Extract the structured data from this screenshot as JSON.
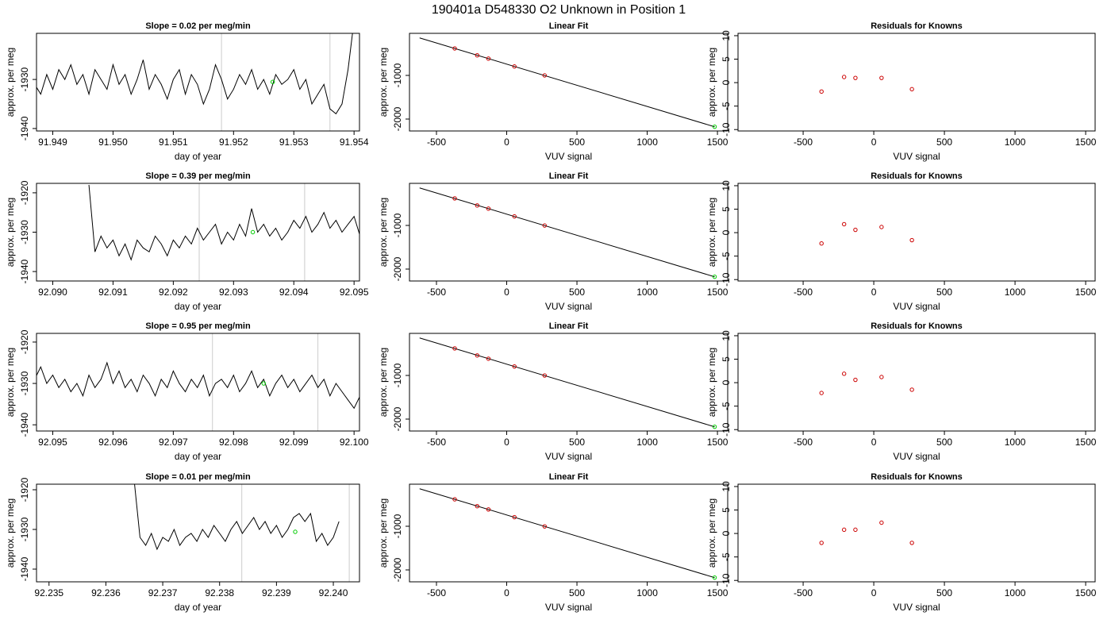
{
  "title": "190401a      D548330    O2 Unknown in Position  1",
  "chart_data": [
    {
      "type": "line",
      "title": "Slope =  0.02  per meg/min",
      "xlabel": "day of year",
      "ylabel": "approx. per meg",
      "x": [
        91.9487,
        91.9488,
        91.9489,
        91.949,
        91.9491,
        91.9492,
        91.9493,
        91.9494,
        91.9495,
        91.9496,
        91.9497,
        91.9498,
        91.9499,
        91.95,
        91.9501,
        91.9502,
        91.9503,
        91.9504,
        91.9505,
        91.9506,
        91.9507,
        91.9508,
        91.9509,
        91.951,
        91.9511,
        91.9512,
        91.9513,
        91.9514,
        91.9515,
        91.9516,
        91.9517,
        91.9518,
        91.9519,
        91.952,
        91.9521,
        91.9522,
        91.9523,
        91.9524,
        91.9525,
        91.9526,
        91.9527,
        91.9528,
        91.9529,
        91.953,
        91.9531,
        91.9532,
        91.9533,
        91.9534,
        91.9535,
        91.9536,
        91.9537,
        91.9538,
        91.9539,
        91.954
      ],
      "series": [
        {
          "color": "#000000",
          "values": [
            -1931,
            -1933,
            -1929,
            -1932,
            -1928,
            -1930,
            -1927,
            -1931,
            -1929,
            -1933,
            -1928,
            -1930,
            -1932,
            -1927,
            -1931,
            -1929,
            -1933,
            -1930,
            -1926,
            -1932,
            -1929,
            -1931,
            -1934,
            -1930,
            -1928,
            -1933,
            -1929,
            -1931,
            -1935,
            -1932,
            -1927,
            -1930,
            -1934,
            -1932,
            -1929,
            -1931,
            -1928,
            -1932,
            -1930,
            -1933,
            -1929,
            -1931,
            -1930,
            -1928,
            -1932,
            -1930,
            -1935,
            -1933,
            -1931,
            -1936,
            -1937,
            -1935,
            -1928,
            -1918
          ]
        }
      ],
      "vlines": [
        91.9518,
        91.9536
      ],
      "vline_color": "#cccccc",
      "point": {
        "x": 91.95265,
        "y": -1930.5,
        "color": "#00cc00"
      },
      "xlim": [
        91.94873,
        91.95409
      ],
      "ylim": [
        -1940.5,
        -1920.6
      ],
      "xticks": [
        91.949,
        {
          "value": 91.95,
          "label": "91.950"
        },
        91.951,
        91.952,
        91.953,
        91.954
      ],
      "yticks": [
        -1930,
        -1940
      ]
    },
    {
      "type": "scatter",
      "title": "Linear Fit",
      "xlabel": "VUV signal",
      "ylabel": "approx. per meg",
      "x": [
        -370,
        -210,
        -130,
        55,
        270
      ],
      "values": [
        -382,
        -540,
        -615,
        -795,
        -1000
      ],
      "color": "#cc0000",
      "unknown": {
        "x": 1480,
        "y": -2176,
        "color": "#00cc00"
      },
      "fit": {
        "x": [
          -620,
          1480
        ],
        "values": [
          -140,
          -2177
        ],
        "color": "#000000"
      },
      "xlim": [
        -692,
        1573
      ],
      "ylim": [
        -2273,
        -36
      ],
      "xticks": [
        -500,
        0,
        500,
        1000,
        1500
      ],
      "yticks": [
        -1000,
        -2000
      ]
    },
    {
      "type": "scatter",
      "title": "Residuals for Knowns",
      "xlabel": "VUV signal",
      "ylabel": "approx. per meg",
      "x": [
        -370,
        -210,
        -130,
        55,
        270
      ],
      "values": [
        -1.9,
        1.2,
        1.0,
        1.0,
        -1.4
      ],
      "color": "#cc0000",
      "xlim": [
        -961,
        1567
      ],
      "ylim": [
        -10.3,
        10.5
      ],
      "xticks": [
        -500,
        0,
        500,
        1000,
        1500
      ],
      "yticks": [
        -10,
        -5,
        0,
        5,
        10
      ]
    },
    {
      "type": "line",
      "title": "Slope =  0.39  per meg/min",
      "xlabel": "day of year",
      "ylabel": "approx. per meg",
      "x": [
        92.0906,
        92.0907,
        92.0908,
        92.0909,
        92.091,
        92.0911,
        92.0912,
        92.0913,
        92.0914,
        92.0915,
        92.0916,
        92.0917,
        92.0918,
        92.0919,
        92.092,
        92.0921,
        92.0922,
        92.0923,
        92.0924,
        92.0925,
        92.0926,
        92.0927,
        92.0928,
        92.0929,
        92.093,
        92.0931,
        92.0932,
        92.0933,
        92.0934,
        92.0935,
        92.0936,
        92.0937,
        92.0938,
        92.0939,
        92.094,
        92.0941,
        92.0942,
        92.0943,
        92.0944,
        92.0945,
        92.0946,
        92.0947,
        92.0948,
        92.0949,
        92.095,
        92.0951,
        92.0952,
        92.0953
      ],
      "series": [
        {
          "color": "#000000",
          "values": [
            -1918,
            -1935,
            -1931,
            -1934,
            -1932,
            -1936,
            -1933,
            -1937,
            -1932,
            -1934,
            -1935,
            -1931,
            -1933,
            -1936,
            -1932,
            -1934,
            -1931,
            -1933,
            -1929,
            -1932,
            -1930,
            -1928,
            -1933,
            -1930,
            -1932,
            -1928,
            -1931,
            -1924,
            -1930,
            -1928,
            -1931,
            -1929,
            -1932,
            -1930,
            -1927,
            -1929,
            -1926,
            -1930,
            -1928,
            -1925,
            -1929,
            -1927,
            -1930,
            -1928,
            -1926,
            -1931,
            -1929,
            -1931
          ]
        }
      ],
      "vlines": [
        92.09243,
        92.09418
      ],
      "vline_color": "#cccccc",
      "point": {
        "x": 92.09332,
        "y": -1930,
        "color": "#00cc00"
      },
      "xlim": [
        92.08973,
        92.09509
      ],
      "ylim": [
        -1942.4,
        -1917.6
      ],
      "xticks": [
        {
          "value": 92.09,
          "label": "92.090"
        },
        92.091,
        92.092,
        92.093,
        92.094,
        92.095
      ],
      "yticks": [
        -1920,
        -1930,
        -1940
      ]
    },
    {
      "type": "scatter",
      "title": "Linear Fit",
      "xlabel": "VUV signal",
      "ylabel": "approx. per meg",
      "x": [
        -370,
        -210,
        -130,
        55,
        270
      ],
      "values": [
        -380,
        -542,
        -615,
        -793,
        -1002
      ],
      "color": "#cc0000",
      "unknown": {
        "x": 1480,
        "y": -2176,
        "color": "#00cc00"
      },
      "fit": {
        "x": [
          -620,
          1480
        ],
        "values": [
          -140,
          -2177
        ],
        "color": "#000000"
      },
      "xlim": [
        -692,
        1573
      ],
      "ylim": [
        -2273,
        -36
      ],
      "xticks": [
        -500,
        0,
        500,
        1000,
        1500
      ],
      "yticks": [
        -1000,
        -2000
      ]
    },
    {
      "type": "scatter",
      "title": "Residuals for Knowns",
      "xlabel": "VUV signal",
      "ylabel": "approx. per meg",
      "x": [
        -370,
        -210,
        -130,
        55,
        270
      ],
      "values": [
        -2.3,
        1.8,
        0.6,
        1.2,
        -1.6
      ],
      "color": "#cc0000",
      "xlim": [
        -961,
        1567
      ],
      "ylim": [
        -10.3,
        10.5
      ],
      "xticks": [
        -500,
        0,
        500,
        1000,
        1500
      ],
      "yticks": [
        -10,
        -5,
        0,
        5,
        10
      ]
    },
    {
      "type": "line",
      "title": "Slope =  0.95  per meg/min",
      "xlabel": "day of year",
      "ylabel": "approx. per meg",
      "x": [
        92.0946,
        92.0947,
        92.0948,
        92.0949,
        92.095,
        92.0951,
        92.0952,
        92.0953,
        92.0954,
        92.0955,
        92.0956,
        92.0957,
        92.0958,
        92.0959,
        92.096,
        92.0961,
        92.0962,
        92.0963,
        92.0964,
        92.0965,
        92.0966,
        92.0967,
        92.0968,
        92.0969,
        92.097,
        92.0971,
        92.0972,
        92.0973,
        92.0974,
        92.0975,
        92.0976,
        92.0977,
        92.0978,
        92.0979,
        92.098,
        92.0981,
        92.0982,
        92.0983,
        92.0984,
        92.0985,
        92.0986,
        92.0987,
        92.0988,
        92.0989,
        92.099,
        92.0991,
        92.0992,
        92.0993,
        92.0994,
        92.0995,
        92.0996,
        92.0997,
        92.0998,
        92.0999,
        92.1,
        92.1001,
        92.1002,
        92.1003
      ],
      "series": [
        {
          "color": "#000000",
          "values": [
            -1927,
            -1929,
            -1926,
            -1930,
            -1928,
            -1931,
            -1929,
            -1932,
            -1930,
            -1933,
            -1928,
            -1931,
            -1929,
            -1925,
            -1930,
            -1927,
            -1931,
            -1929,
            -1932,
            -1928,
            -1930,
            -1933,
            -1929,
            -1931,
            -1927,
            -1930,
            -1932,
            -1929,
            -1931,
            -1928,
            -1933,
            -1930,
            -1929,
            -1931,
            -1928,
            -1932,
            -1930,
            -1927,
            -1931,
            -1929,
            -1933,
            -1930,
            -1928,
            -1931,
            -1929,
            -1932,
            -1930,
            -1928,
            -1931,
            -1929,
            -1933,
            -1930,
            -1932,
            -1934,
            -1936,
            -1933,
            -1928,
            -1918
          ]
        }
      ],
      "vlines": [
        92.09765,
        92.0994
      ],
      "vline_color": "#cccccc",
      "point": {
        "x": 92.0985,
        "y": -1930,
        "color": "#00cc00"
      },
      "xlim": [
        92.09473,
        92.10009
      ],
      "ylim": [
        -1941.5,
        -1917.9
      ],
      "xticks": [
        92.095,
        92.096,
        92.097,
        92.098,
        92.099,
        {
          "value": 92.1,
          "label": "92.100"
        }
      ],
      "yticks": [
        -1920,
        -1930,
        -1940
      ]
    },
    {
      "type": "scatter",
      "title": "Linear Fit",
      "xlabel": "VUV signal",
      "ylabel": "approx. per meg",
      "x": [
        -370,
        -210,
        -130,
        55,
        270
      ],
      "values": [
        -381,
        -541,
        -616,
        -794,
        -1001
      ],
      "color": "#cc0000",
      "unknown": {
        "x": 1480,
        "y": -2176,
        "color": "#00cc00"
      },
      "fit": {
        "x": [
          -620,
          1480
        ],
        "values": [
          -140,
          -2177
        ],
        "color": "#000000"
      },
      "xlim": [
        -692,
        1573
      ],
      "ylim": [
        -2273,
        -36
      ],
      "xticks": [
        -500,
        0,
        500,
        1000,
        1500
      ],
      "yticks": [
        -1000,
        -2000
      ]
    },
    {
      "type": "scatter",
      "title": "Residuals for Knowns",
      "xlabel": "VUV signal",
      "ylabel": "approx. per meg",
      "x": [
        -370,
        -210,
        -130,
        55,
        270
      ],
      "values": [
        -2.2,
        1.9,
        0.6,
        1.2,
        -1.5
      ],
      "color": "#cc0000",
      "xlim": [
        -961,
        1567
      ],
      "ylim": [
        -10.3,
        10.5
      ],
      "xticks": [
        -500,
        0,
        500,
        1000,
        1500
      ],
      "yticks": [
        -10,
        -5,
        0,
        5,
        10
      ]
    },
    {
      "type": "line",
      "title": "Slope =  0.01  per meg/min",
      "xlabel": "day of year",
      "ylabel": "approx. per meg",
      "x": [
        92.2365,
        92.2366,
        92.2367,
        92.2368,
        92.2369,
        92.237,
        92.2371,
        92.2372,
        92.2373,
        92.2374,
        92.2375,
        92.2376,
        92.2377,
        92.2378,
        92.2379,
        92.238,
        92.2381,
        92.2382,
        92.2383,
        92.2384,
        92.2385,
        92.2386,
        92.2387,
        92.2388,
        92.2389,
        92.239,
        92.2391,
        92.2392,
        92.2393,
        92.2394,
        92.2395,
        92.2396,
        92.2397,
        92.2398,
        92.2399,
        92.24,
        92.2401
      ],
      "series": [
        {
          "color": "#000000",
          "values": [
            -1918,
            -1932,
            -1934,
            -1931,
            -1935,
            -1932,
            -1933,
            -1930,
            -1934,
            -1932,
            -1931,
            -1933,
            -1930,
            -1932,
            -1929,
            -1931,
            -1933,
            -1930,
            -1928,
            -1931,
            -1929,
            -1927,
            -1930,
            -1928,
            -1931,
            -1929,
            -1932,
            -1930,
            -1927,
            -1926,
            -1928,
            -1926,
            -1933,
            -1931,
            -1934,
            -1932,
            -1928
          ]
        }
      ],
      "vlines": [
        92.23839,
        92.24028
      ],
      "vline_color": "#cccccc",
      "point": {
        "x": 92.23933,
        "y": -1930.6,
        "color": "#00cc00"
      },
      "xlim": [
        92.23478,
        92.24046
      ],
      "ylim": [
        -1943.2,
        -1918.6
      ],
      "xticks": [
        92.235,
        92.236,
        92.237,
        92.238,
        92.239,
        {
          "value": 92.24,
          "label": "92.240"
        }
      ],
      "yticks": [
        -1920,
        -1930,
        -1940
      ]
    },
    {
      "type": "scatter",
      "title": "Linear Fit",
      "xlabel": "VUV signal",
      "ylabel": "approx. per meg",
      "x": [
        -370,
        -210,
        -130,
        55,
        270
      ],
      "values": [
        -383,
        -540,
        -614,
        -792,
        -1003
      ],
      "color": "#cc0000",
      "unknown": {
        "x": 1480,
        "y": -2176,
        "color": "#00cc00"
      },
      "fit": {
        "x": [
          -620,
          1480
        ],
        "values": [
          -140,
          -2177
        ],
        "color": "#000000"
      },
      "xlim": [
        -692,
        1573
      ],
      "ylim": [
        -2273,
        -36
      ],
      "xticks": [
        -500,
        0,
        500,
        1000,
        1500
      ],
      "yticks": [
        -1000,
        -2000
      ]
    },
    {
      "type": "scatter",
      "title": "Residuals for Knowns",
      "xlabel": "VUV signal",
      "ylabel": "approx. per meg",
      "x": [
        -370,
        -210,
        -130,
        55,
        270
      ],
      "values": [
        -2.0,
        0.8,
        0.8,
        2.3,
        -2.0
      ],
      "color": "#cc0000",
      "xlim": [
        -961,
        1567
      ],
      "ylim": [
        -10.3,
        10.5
      ],
      "xticks": [
        -500,
        0,
        500,
        1000,
        1500
      ],
      "yticks": [
        -10,
        -5,
        0,
        5,
        10
      ]
    }
  ]
}
